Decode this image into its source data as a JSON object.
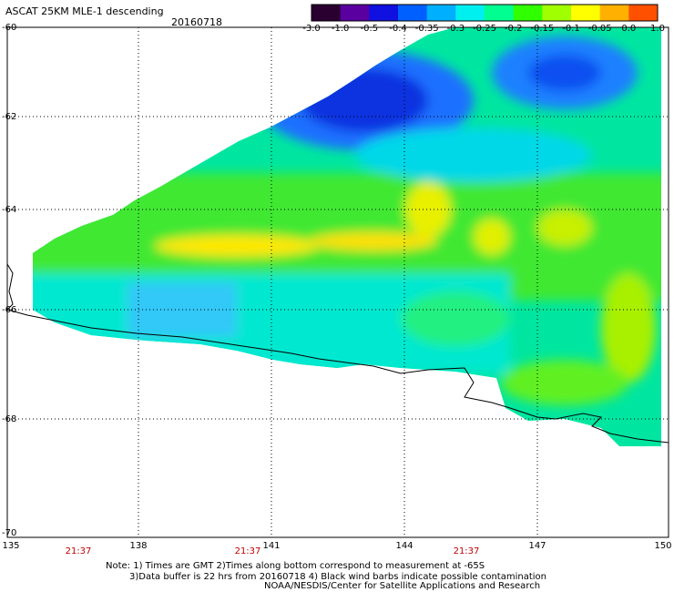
{
  "header": {
    "title": "ASCAT 25KM MLE-1 descending",
    "date": "20160718"
  },
  "colorbar": {
    "labels": [
      "-3.0",
      "-1.0",
      "-0.5",
      "-0.4",
      "-0.35",
      "-0.3",
      "-0.25",
      "-0.2",
      "-0.15",
      "-0.1",
      "-0.05",
      "0.0",
      "1.0"
    ],
    "colors": [
      "#2a0030",
      "#5a00a0",
      "#1010e0",
      "#0060ff",
      "#00b0ff",
      "#00f0f0",
      "#00ff90",
      "#30ff00",
      "#a0ff00",
      "#ffff00",
      "#ffb000",
      "#ff5000",
      "#ff0000"
    ]
  },
  "axes": {
    "x_ticks": [
      "135",
      "138",
      "141",
      "144",
      "147",
      "150"
    ],
    "y_ticks": [
      "-60",
      "-62",
      "-64",
      "-66",
      "-68",
      "-70"
    ]
  },
  "times": [
    "21:37",
    "21:37",
    "21:37"
  ],
  "notes": {
    "line1": "Note: 1) Times are GMT 2)Times along bottom correspond to measurement at -65S",
    "line2": "3)Data buffer is 22 hrs from 20160718 4) Black wind barbs indicate possible contamination",
    "line3": "NOAA/NESDIS/Center for Satellite Applications and Research"
  }
}
